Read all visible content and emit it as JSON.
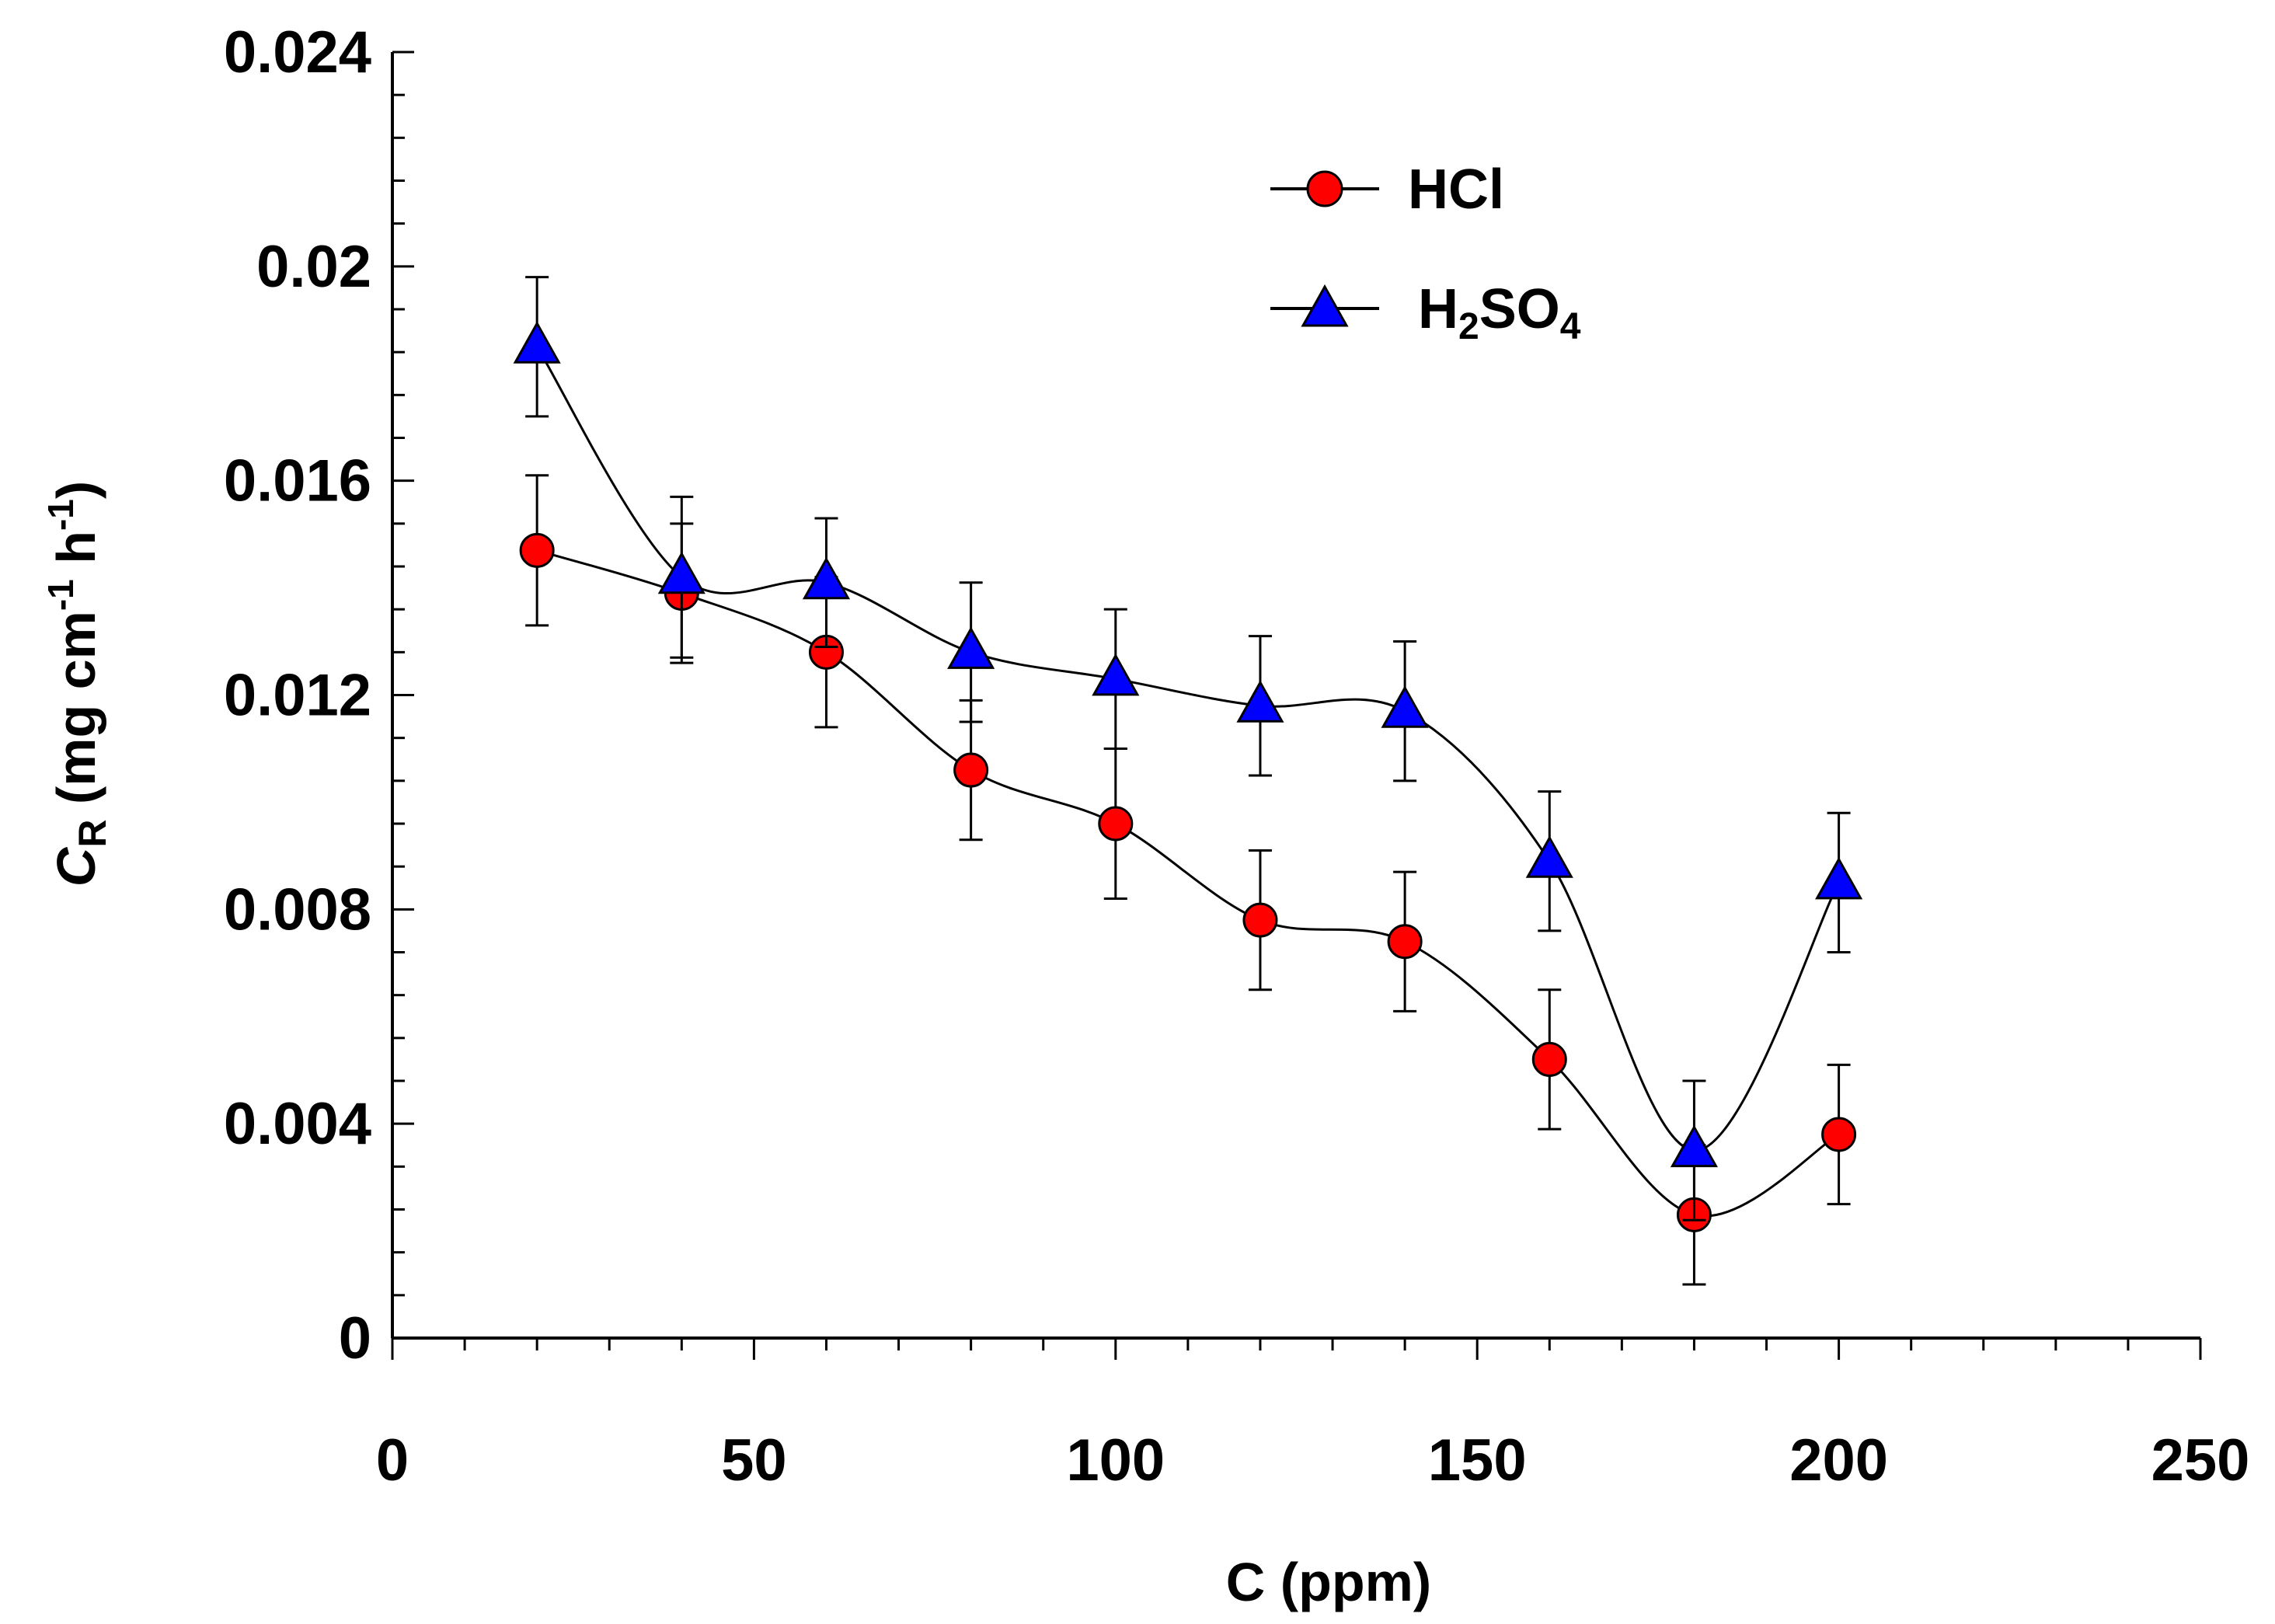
{
  "chart_data": {
    "type": "line",
    "title": "",
    "xlabel": "C (ppm)",
    "ylabel": {
      "italic": "C",
      "subscript": "R",
      "units_lead": " (mg cm",
      "exp1": "-1",
      "units_mid": " h",
      "exp2": "-1",
      "units_tail": ")"
    },
    "xlim": [
      0,
      250
    ],
    "ylim": [
      0,
      0.024
    ],
    "x_ticks": [
      "0",
      "50",
      "100",
      "150",
      "200",
      "250"
    ],
    "y_ticks": [
      "0",
      "0.004",
      "0.008",
      "0.012",
      "0.016",
      "0.02",
      "0.024"
    ],
    "x": [
      20,
      40,
      60,
      80,
      100,
      120,
      140,
      160,
      180,
      200
    ],
    "series": [
      {
        "name": "HCl",
        "marker": "circle",
        "color": "#ff0000",
        "values": [
          0.0147,
          0.0139,
          0.0128,
          0.0106,
          0.0096,
          0.0078,
          0.0074,
          0.0052,
          0.0023,
          0.0038
        ],
        "errors": [
          0.0014,
          0.0013,
          0.0014,
          0.0013,
          0.0014,
          0.0013,
          0.0013,
          0.0013,
          0.0013,
          0.0013
        ]
      },
      {
        "name": "H2SO4",
        "legend_parts": [
          "H",
          "2",
          "SO",
          "4"
        ],
        "marker": "triangle",
        "color": "#0000ff",
        "values": [
          0.0185,
          0.0142,
          0.0141,
          0.0128,
          0.0123,
          0.0118,
          0.0117,
          0.0089,
          0.0035,
          0.0085
        ],
        "errors": [
          0.0013,
          0.0015,
          0.0012,
          0.0013,
          0.0013,
          0.0013,
          0.0013,
          0.0013,
          0.0013,
          0.0013
        ]
      }
    ],
    "legend_position": "top-center",
    "grid": false,
    "error_bars": true
  }
}
